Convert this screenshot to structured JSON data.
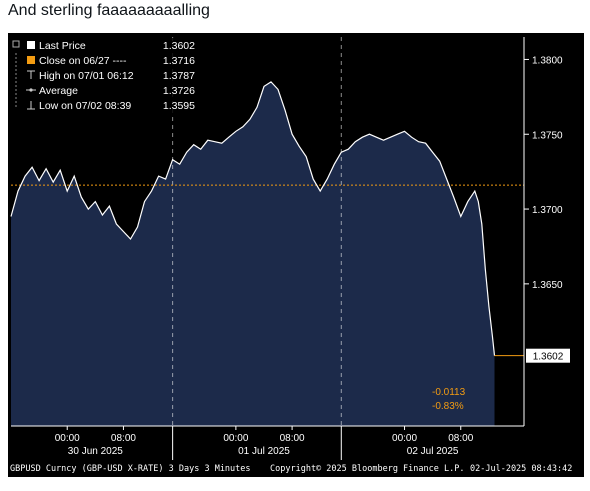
{
  "post": {
    "caption": "And sterling faaaaaaaaalling"
  },
  "chart_data": {
    "type": "area",
    "title": "",
    "instrument_footer": "GBPUSD Curncy (GBP-USD X-RATE) 3 Days 3 Minutes",
    "copyright": "Copyright© 2025 Bloomberg Finance L.P.",
    "timestamp": "02-Jul-2025 08:43:42",
    "ylim": [
      1.3555,
      1.3815
    ],
    "y_ticks": [
      {
        "value": 1.38,
        "label": "1.3800"
      },
      {
        "value": 1.375,
        "label": "1.3750"
      },
      {
        "value": 1.37,
        "label": "1.3700"
      },
      {
        "value": 1.365,
        "label": "1.3650"
      }
    ],
    "x_ticks": [
      {
        "hour": 0,
        "label": "00:00"
      },
      {
        "hour": 8,
        "label": "08:00"
      },
      {
        "hour": 24,
        "label": "00:00"
      },
      {
        "hour": 32,
        "label": "08:00"
      },
      {
        "hour": 48,
        "label": "00:00"
      },
      {
        "hour": 56,
        "label": "08:00"
      }
    ],
    "day_labels": [
      {
        "hour": 4,
        "label": "30 Jun 2025"
      },
      {
        "hour": 28,
        "label": "01 Jul 2025"
      },
      {
        "hour": 52,
        "label": "02 Jul 2025"
      }
    ],
    "day_separators": [
      15,
      39
    ],
    "hour_range": [
      -8,
      65
    ],
    "series": [
      {
        "name": "Last Price",
        "points": [
          [
            -8,
            1.3695
          ],
          [
            -7,
            1.3712
          ],
          [
            -6,
            1.3722
          ],
          [
            -5,
            1.3728
          ],
          [
            -4,
            1.3719
          ],
          [
            -3,
            1.3727
          ],
          [
            -2,
            1.3718
          ],
          [
            -1,
            1.3726
          ],
          [
            0,
            1.3712
          ],
          [
            1,
            1.3722
          ],
          [
            2,
            1.3708
          ],
          [
            3,
            1.37
          ],
          [
            4,
            1.3705
          ],
          [
            5,
            1.3696
          ],
          [
            6,
            1.3702
          ],
          [
            7,
            1.369
          ],
          [
            8,
            1.3685
          ],
          [
            9,
            1.368
          ],
          [
            10,
            1.3688
          ],
          [
            11,
            1.3705
          ],
          [
            12,
            1.3712
          ],
          [
            13,
            1.3722
          ],
          [
            14,
            1.372
          ],
          [
            15,
            1.3733
          ],
          [
            16,
            1.373
          ],
          [
            17,
            1.3738
          ],
          [
            18,
            1.3743
          ],
          [
            19,
            1.374
          ],
          [
            20,
            1.3746
          ],
          [
            21,
            1.3745
          ],
          [
            22,
            1.3744
          ],
          [
            23,
            1.3748
          ],
          [
            24,
            1.3752
          ],
          [
            25,
            1.3755
          ],
          [
            26,
            1.376
          ],
          [
            27,
            1.3768
          ],
          [
            28,
            1.3782
          ],
          [
            29,
            1.3785
          ],
          [
            30,
            1.378
          ],
          [
            31,
            1.3766
          ],
          [
            32,
            1.375
          ],
          [
            33,
            1.3742
          ],
          [
            34,
            1.3735
          ],
          [
            35,
            1.372
          ],
          [
            36,
            1.3712
          ],
          [
            37,
            1.372
          ],
          [
            38,
            1.373
          ],
          [
            39,
            1.3738
          ],
          [
            40,
            1.374
          ],
          [
            41,
            1.3745
          ],
          [
            42,
            1.3748
          ],
          [
            43,
            1.375
          ],
          [
            44,
            1.3748
          ],
          [
            45,
            1.3746
          ],
          [
            46,
            1.3748
          ],
          [
            47,
            1.375
          ],
          [
            48,
            1.3752
          ],
          [
            49,
            1.3748
          ],
          [
            50,
            1.3745
          ],
          [
            51,
            1.3744
          ],
          [
            52,
            1.3738
          ],
          [
            53,
            1.3732
          ],
          [
            54,
            1.372
          ],
          [
            55,
            1.3708
          ],
          [
            56,
            1.3695
          ],
          [
            57,
            1.3705
          ],
          [
            58,
            1.3712
          ],
          [
            58.5,
            1.3705
          ],
          [
            59,
            1.369
          ],
          [
            59.5,
            1.366
          ],
          [
            60,
            1.3635
          ],
          [
            60.5,
            1.3615
          ],
          [
            60.8,
            1.3602
          ]
        ]
      }
    ],
    "close_line": {
      "value": 1.3716,
      "label": "Close on 06/27"
    },
    "last_price": {
      "value": 1.3602,
      "label": "1.3602"
    },
    "change": {
      "abs": "-0.0113",
      "pct": "-0.83%"
    },
    "legend_position": "top-left",
    "legend": [
      {
        "name": "Last Price",
        "value": "1.3602",
        "color": "#ffffff",
        "marker": "square"
      },
      {
        "name": "Close on 06/27 ----",
        "value": "1.3716",
        "color": "#f39c12",
        "marker": "square"
      },
      {
        "name": "High on 07/01 06:12",
        "value": "1.3787",
        "color": "#cccccc",
        "marker": "high"
      },
      {
        "name": "Average",
        "value": "1.3726",
        "color": "#cccccc",
        "marker": "average"
      },
      {
        "name": "Low on 07/02 08:39",
        "value": "1.3595",
        "color": "#cccccc",
        "marker": "low"
      }
    ],
    "colors": {
      "area": "#1c2a4a",
      "line": "#ffffff",
      "close": "#f39c12",
      "background": "#000000",
      "axis": "#ffffff"
    }
  }
}
